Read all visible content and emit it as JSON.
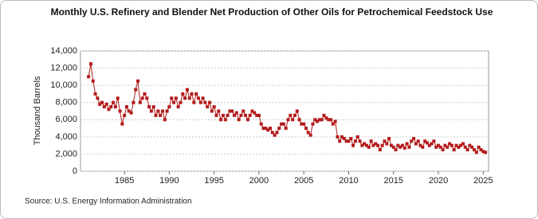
{
  "chart_data": {
    "type": "line",
    "title": "Monthly U.S. Refinery and Blender Net Production of Other Oils for Petrochemical Feedstock Use",
    "y_label": "Thousand Barrels",
    "source": "Source: U.S. Energy Information Administration",
    "color": "#b31b1b",
    "grid": true,
    "xlim": [
      1980.1,
      2025.6
    ],
    "xticks": [
      1985,
      1990,
      1995,
      2000,
      2005,
      2010,
      2015,
      2020,
      2025
    ],
    "ylim": [
      0,
      14000
    ],
    "yticks": [
      0,
      {
        "value": 2000,
        "label": "2,000"
      },
      {
        "value": 4000,
        "label": "4,000"
      },
      {
        "value": 6000,
        "label": "6,000"
      },
      {
        "value": 8000,
        "label": "8,000"
      },
      {
        "value": 10000,
        "label": "10,000"
      },
      {
        "value": 12000,
        "label": "12,000"
      },
      {
        "value": 14000,
        "label": "14,000"
      }
    ],
    "x": [
      1981.0,
      1981.25,
      1981.5,
      1981.75,
      1982.0,
      1982.25,
      1982.5,
      1982.75,
      1983.0,
      1983.25,
      1983.5,
      1983.75,
      1984.0,
      1984.25,
      1984.5,
      1984.75,
      1985.0,
      1985.25,
      1985.5,
      1985.75,
      1986.0,
      1986.25,
      1986.5,
      1986.75,
      1987.0,
      1987.25,
      1987.5,
      1987.75,
      1988.0,
      1988.25,
      1988.5,
      1988.75,
      1989.0,
      1989.25,
      1989.5,
      1989.75,
      1990.0,
      1990.25,
      1990.5,
      1990.75,
      1991.0,
      1991.25,
      1991.5,
      1991.75,
      1992.0,
      1992.25,
      1992.5,
      1992.75,
      1993.0,
      1993.25,
      1993.5,
      1993.75,
      1994.0,
      1994.25,
      1994.5,
      1994.75,
      1995.0,
      1995.25,
      1995.5,
      1995.75,
      1996.0,
      1996.25,
      1996.5,
      1996.75,
      1997.0,
      1997.25,
      1997.5,
      1997.75,
      1998.0,
      1998.25,
      1998.5,
      1998.75,
      1999.0,
      1999.25,
      1999.5,
      1999.75,
      2000.0,
      2000.25,
      2000.5,
      2000.75,
      2001.0,
      2001.25,
      2001.5,
      2001.75,
      2002.0,
      2002.25,
      2002.5,
      2002.75,
      2003.0,
      2003.25,
      2003.5,
      2003.75,
      2004.0,
      2004.25,
      2004.5,
      2004.75,
      2005.0,
      2005.25,
      2005.5,
      2005.75,
      2006.0,
      2006.25,
      2006.5,
      2006.75,
      2007.0,
      2007.25,
      2007.5,
      2007.75,
      2008.0,
      2008.25,
      2008.5,
      2008.75,
      2009.0,
      2009.25,
      2009.5,
      2009.75,
      2010.0,
      2010.25,
      2010.5,
      2010.75,
      2011.0,
      2011.25,
      2011.5,
      2011.75,
      2012.0,
      2012.25,
      2012.5,
      2012.75,
      2013.0,
      2013.25,
      2013.5,
      2013.75,
      2014.0,
      2014.25,
      2014.5,
      2014.75,
      2015.0,
      2015.25,
      2015.5,
      2015.75,
      2016.0,
      2016.25,
      2016.5,
      2016.75,
      2017.0,
      2017.25,
      2017.5,
      2017.75,
      2018.0,
      2018.25,
      2018.5,
      2018.75,
      2019.0,
      2019.25,
      2019.5,
      2019.75,
      2020.0,
      2020.25,
      2020.5,
      2020.75,
      2021.0,
      2021.25,
      2021.5,
      2021.75,
      2022.0,
      2022.25,
      2022.5,
      2022.75,
      2023.0,
      2023.25,
      2023.5,
      2023.75,
      2024.0,
      2024.25,
      2024.5,
      2024.75,
      2025.0,
      2025.25
    ],
    "values": [
      11000,
      12500,
      10500,
      9000,
      8500,
      7800,
      8000,
      7500,
      7800,
      7200,
      7500,
      8000,
      7500,
      8500,
      7000,
      5500,
      6500,
      7500,
      7000,
      6800,
      8000,
      9500,
      10500,
      8000,
      8500,
      9000,
      8500,
      7500,
      7000,
      7500,
      6500,
      7000,
      6500,
      7000,
      6000,
      7000,
      7500,
      8500,
      8000,
      8500,
      7500,
      8000,
      9000,
      8500,
      9500,
      8500,
      9000,
      8000,
      9000,
      8500,
      8000,
      8500,
      8000,
      7500,
      8000,
      7000,
      7500,
      6500,
      7000,
      6000,
      6500,
      6000,
      6500,
      7000,
      7000,
      6500,
      6800,
      6000,
      6500,
      7000,
      6500,
      6000,
      6500,
      7000,
      6800,
      6500,
      6500,
      5500,
      5000,
      5000,
      4800,
      5000,
      4500,
      4200,
      4500,
      5000,
      5500,
      5500,
      5000,
      6000,
      6500,
      6000,
      6500,
      7000,
      6000,
      5500,
      5500,
      5000,
      4500,
      4200,
      5500,
      6000,
      5800,
      6000,
      6000,
      6500,
      6200,
      6000,
      6000,
      5500,
      5800,
      4000,
      3500,
      4000,
      3800,
      3500,
      3500,
      3800,
      3000,
      3500,
      4000,
      3500,
      3000,
      3200,
      3000,
      2800,
      3500,
      3000,
      3200,
      3000,
      2500,
      3000,
      3500,
      3200,
      3800,
      3000,
      2800,
      2500,
      3000,
      2800,
      3000,
      2700,
      3200,
      2800,
      3500,
      3800,
      3200,
      3500,
      3000,
      2800,
      3500,
      3300,
      3000,
      3200,
      3500,
      2800,
      3000,
      2800,
      2500,
      3000,
      2800,
      3200,
      3000,
      2500,
      3000,
      2800,
      3000,
      3200,
      2800,
      2500,
      3000,
      2800,
      2500,
      2200,
      2800,
      2500,
      2300,
      2200
    ]
  }
}
